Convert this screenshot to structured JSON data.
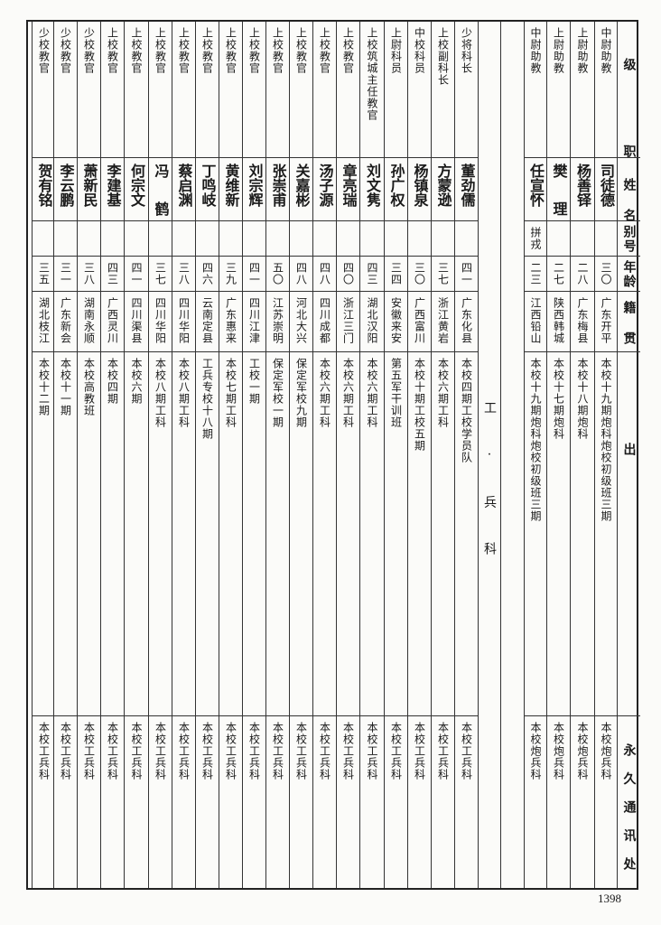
{
  "header": {
    "rank": "级职",
    "name": "姓名",
    "alias": "别号",
    "age": "年龄",
    "native_place": "籍贯",
    "background": "出身",
    "address": "永久通讯处"
  },
  "artillery_rows": [
    {
      "rank": "中尉助教",
      "name": "司徒德",
      "alias": "",
      "age": "三〇",
      "native_place": "广东开平",
      "background": "本校十九期炮科炮校初级班三期",
      "address": "本校炮兵科"
    },
    {
      "rank": "上尉助教",
      "name": "杨善铎",
      "alias": "",
      "age": "二八",
      "native_place": "广东梅县",
      "background": "本校十八期炮科",
      "address": "本校炮兵科"
    },
    {
      "rank": "上尉助教",
      "name": "樊理",
      "alias": "",
      "age": "二七",
      "native_place": "陕西韩城",
      "background": "本校十七期炮科",
      "address": "本校炮兵科"
    },
    {
      "rank": "中尉助教",
      "name": "任宣怀",
      "alias": "拼戎",
      "age": "二三",
      "native_place": "江西铅山",
      "background": "本校十九期炮科炮校初级班三期",
      "address": "本校炮兵科"
    }
  ],
  "section_label": "工·兵科",
  "engineer_rows": [
    {
      "rank": "少将科长",
      "name": "董劲儒",
      "alias": "",
      "age": "四一",
      "native_place": "广东化县",
      "background": "本校四期工校学员队",
      "address": "本校工兵科"
    },
    {
      "rank": "上校副科长",
      "name": "方蒙逊",
      "alias": "",
      "age": "三七",
      "native_place": "浙江黄岩",
      "background": "本校六期工科",
      "address": "本校工兵科"
    },
    {
      "rank": "中校科员",
      "name": "杨镇泉",
      "alias": "",
      "age": "三〇",
      "native_place": "广西富川",
      "background": "本校十期工校五期",
      "address": "本校工兵科"
    },
    {
      "rank": "上尉科员",
      "name": "孙广权",
      "alias": "",
      "age": "三四",
      "native_place": "安徽来安",
      "background": "第五军干训班",
      "address": "本校工兵科"
    },
    {
      "rank": "上校筑城主任教官",
      "name": "刘文隽",
      "alias": "",
      "age": "四三",
      "native_place": "湖北汉阳",
      "background": "本校六期工科",
      "address": "本校工兵科"
    },
    {
      "rank": "上校教官",
      "name": "章亮瑞",
      "alias": "",
      "age": "四〇",
      "native_place": "浙江三门",
      "background": "本校六期工科",
      "address": "本校工兵科"
    },
    {
      "rank": "上校教官",
      "name": "汤子源",
      "alias": "",
      "age": "四八",
      "native_place": "四川成都",
      "background": "本校六期工科",
      "address": "本校工兵科"
    },
    {
      "rank": "上校教官",
      "name": "关嘉彬",
      "alias": "",
      "age": "四八",
      "native_place": "河北大兴",
      "background": "保定军校九期",
      "address": "本校工兵科"
    },
    {
      "rank": "上校教官",
      "name": "张崇甫",
      "alias": "",
      "age": "五〇",
      "native_place": "江苏崇明",
      "background": "保定军校一期",
      "address": "本校工兵科"
    },
    {
      "rank": "上校教官",
      "name": "刘宗辉",
      "alias": "",
      "age": "四一",
      "native_place": "四川江津",
      "background": "工校一期",
      "address": "本校工兵科"
    },
    {
      "rank": "上校教官",
      "name": "黄维新",
      "alias": "",
      "age": "三九",
      "native_place": "广东惠来",
      "background": "本校七期工科",
      "address": "本校工兵科"
    },
    {
      "rank": "上校教官",
      "name": "丁鸣岐",
      "alias": "",
      "age": "四六",
      "native_place": "云南定县",
      "background": "工兵专校十八期",
      "address": "本校工兵科"
    },
    {
      "rank": "上校教官",
      "name": "蔡启渊",
      "alias": "",
      "age": "三八",
      "native_place": "四川华阳",
      "background": "本校八期工科",
      "address": "本校工兵科"
    },
    {
      "rank": "上校教官",
      "name": "冯鹤",
      "alias": "",
      "age": "三七",
      "native_place": "四川华阳",
      "background": "本校八期工科",
      "address": "本校工兵科"
    },
    {
      "rank": "上校教官",
      "name": "何宗文",
      "alias": "",
      "age": "四一",
      "native_place": "四川渠县",
      "background": "本校六期",
      "address": "本校工兵科"
    },
    {
      "rank": "上校教官",
      "name": "李建基",
      "alias": "",
      "age": "四三",
      "native_place": "广西灵川",
      "background": "本校四期",
      "address": "本校工兵科"
    },
    {
      "rank": "少校教官",
      "name": "萧新民",
      "alias": "",
      "age": "三八",
      "native_place": "湖南永顺",
      "background": "本校高教班",
      "address": "本校工兵科"
    },
    {
      "rank": "少校教官",
      "name": "李云鹏",
      "alias": "",
      "age": "三一",
      "native_place": "广东新会",
      "background": "本校十一期",
      "address": "本校工兵科"
    },
    {
      "rank": "少校教官",
      "name": "贺有铭",
      "alias": "",
      "age": "三五",
      "native_place": "湖北枝江",
      "background": "本校十二期",
      "address": "本校工兵科"
    }
  ],
  "page_number": "1398"
}
